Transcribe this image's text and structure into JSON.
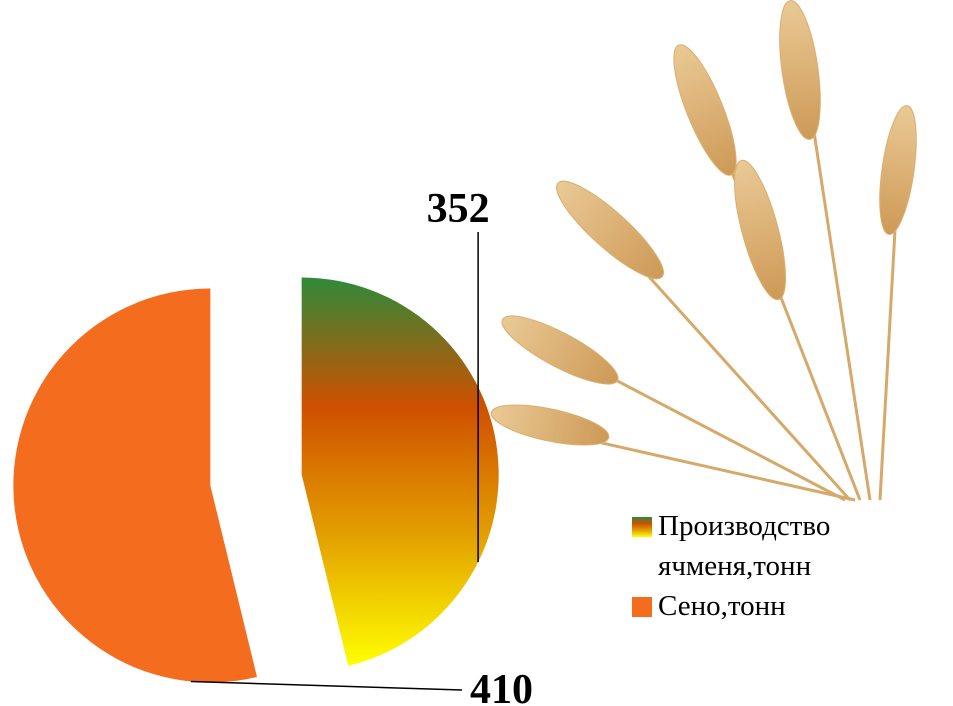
{
  "chart_data": {
    "type": "pie",
    "categories": [
      "Производство ячменя,тонн",
      "Сено,тонн"
    ],
    "values": [
      352,
      410
    ],
    "colors": [
      [
        "#2e8a3a",
        "#cf5000",
        "#e3a000",
        "#ffff00"
      ],
      "#f46d1f"
    ],
    "exploded": true,
    "legend": "right"
  }
}
